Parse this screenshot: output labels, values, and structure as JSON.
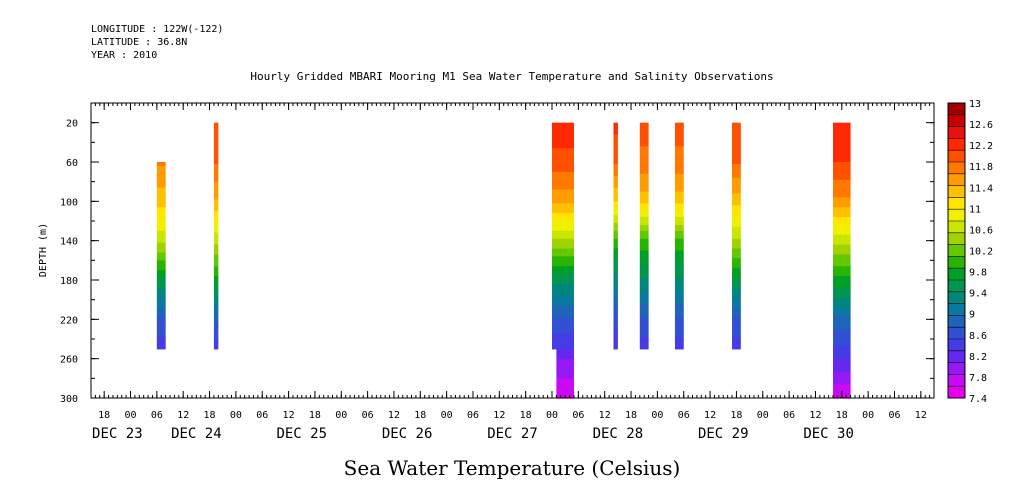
{
  "header": {
    "longitude": "LONGITUDE : 122W(-122)",
    "latitude": "LATITUDE : 36.8N",
    "year": "YEAR : 2010"
  },
  "chart_data": {
    "type": "heatmap",
    "title": "Hourly Gridded MBARI Mooring M1 Sea Water Temperature and Salinity Observations",
    "xlabel": "Sea Water Temperature (Celsius)",
    "ylabel": "DEPTH (m)",
    "x_hours_range": [
      -9,
      183
    ],
    "y_range": [
      0,
      300
    ],
    "y_reversed": true,
    "x_hour_ticks": [
      -6,
      0,
      6,
      12,
      18,
      24,
      30,
      36,
      42,
      48,
      54,
      60,
      66,
      72,
      78,
      84,
      90,
      96,
      102,
      108,
      114,
      120,
      126,
      132,
      138,
      144,
      150,
      156,
      162,
      168,
      174,
      180
    ],
    "x_hour_tick_labels": [
      "18",
      "00",
      "06",
      "12",
      "18",
      "00",
      "06",
      "12",
      "18",
      "00",
      "06",
      "12",
      "18",
      "00",
      "06",
      "12",
      "18",
      "00",
      "06",
      "12",
      "18",
      "00",
      "06",
      "12",
      "18",
      "00",
      "06",
      "12",
      "18",
      "00",
      "06",
      "12"
    ],
    "day_labels": [
      {
        "label": "DEC 23",
        "hour": -3
      },
      {
        "label": "DEC 24",
        "hour": 15
      },
      {
        "label": "DEC 25",
        "hour": 39
      },
      {
        "label": "DEC 26",
        "hour": 63
      },
      {
        "label": "DEC 27",
        "hour": 87
      },
      {
        "label": "DEC 28",
        "hour": 111
      },
      {
        "label": "DEC 29",
        "hour": 135
      },
      {
        "label": "DEC 30",
        "hour": 159
      }
    ],
    "y_ticks": [
      20,
      60,
      100,
      140,
      180,
      220,
      260,
      300
    ],
    "colorbar": {
      "labels": [
        "13",
        "12.6",
        "12.2",
        "11.8",
        "11.4",
        "11",
        "10.6",
        "10.2",
        "9.8",
        "9.4",
        "9",
        "8.6",
        "8.2",
        "7.8",
        "7.4"
      ],
      "colors": [
        "#a00000",
        "#c80000",
        "#e81010",
        "#ff2800",
        "#ff5000",
        "#ff7800",
        "#ff9c00",
        "#ffc000",
        "#ffe600",
        "#f0f000",
        "#c8e600",
        "#a0d200",
        "#64c800",
        "#28b400",
        "#00a028",
        "#009650",
        "#00877d",
        "#0a78a0",
        "#1e64b9",
        "#3250d2",
        "#463ce6",
        "#6428f0",
        "#9619f5",
        "#c80af5",
        "#e600f0"
      ]
    },
    "columns": [
      {
        "start_hour": 6,
        "end_hour": 8,
        "top_depth": 60,
        "bottom_depth": 250,
        "stops": [
          {
            "depth": 60,
            "temp": 11.7
          },
          {
            "depth": 100,
            "temp": 11.3
          },
          {
            "depth": 140,
            "temp": 10.6
          },
          {
            "depth": 180,
            "temp": 9.6
          },
          {
            "depth": 220,
            "temp": 8.7
          },
          {
            "depth": 250,
            "temp": 8.4
          }
        ]
      },
      {
        "start_hour": 19,
        "end_hour": 20,
        "top_depth": 20,
        "bottom_depth": 250,
        "stops": [
          {
            "depth": 20,
            "temp": 12.1
          },
          {
            "depth": 60,
            "temp": 11.9
          },
          {
            "depth": 100,
            "temp": 11.4
          },
          {
            "depth": 140,
            "temp": 10.6
          },
          {
            "depth": 180,
            "temp": 9.8
          },
          {
            "depth": 220,
            "temp": 8.8
          },
          {
            "depth": 250,
            "temp": 8.4
          }
        ]
      },
      {
        "start_hour": 96,
        "end_hour": 101,
        "top_depth": 20,
        "bottom_depth": 250,
        "stops": [
          {
            "depth": 20,
            "temp": 12.3
          },
          {
            "depth": 60,
            "temp": 12.0
          },
          {
            "depth": 100,
            "temp": 11.5
          },
          {
            "depth": 140,
            "temp": 10.5
          },
          {
            "depth": 180,
            "temp": 9.5
          },
          {
            "depth": 220,
            "temp": 8.7
          },
          {
            "depth": 250,
            "temp": 8.3
          }
        ]
      },
      {
        "start_hour": 97,
        "end_hour": 101,
        "top_depth": 250,
        "bottom_depth": 300,
        "stops": [
          {
            "depth": 250,
            "temp": 8.2
          },
          {
            "depth": 275,
            "temp": 7.9
          },
          {
            "depth": 300,
            "temp": 7.6
          }
        ]
      },
      {
        "start_hour": 110,
        "end_hour": 111,
        "top_depth": 20,
        "bottom_depth": 250,
        "stops": [
          {
            "depth": 20,
            "temp": 12.2
          },
          {
            "depth": 60,
            "temp": 11.9
          },
          {
            "depth": 100,
            "temp": 11.2
          },
          {
            "depth": 140,
            "temp": 10.0
          },
          {
            "depth": 180,
            "temp": 9.3
          },
          {
            "depth": 220,
            "temp": 8.6
          },
          {
            "depth": 250,
            "temp": 8.3
          }
        ]
      },
      {
        "start_hour": 116,
        "end_hour": 118,
        "top_depth": 20,
        "bottom_depth": 250,
        "stops": [
          {
            "depth": 20,
            "temp": 12.0
          },
          {
            "depth": 60,
            "temp": 11.8
          },
          {
            "depth": 100,
            "temp": 11.3
          },
          {
            "depth": 140,
            "temp": 10.0
          },
          {
            "depth": 180,
            "temp": 9.4
          },
          {
            "depth": 220,
            "temp": 8.7
          },
          {
            "depth": 250,
            "temp": 8.4
          }
        ]
      },
      {
        "start_hour": 124,
        "end_hour": 126,
        "top_depth": 20,
        "bottom_depth": 250,
        "stops": [
          {
            "depth": 20,
            "temp": 12.0
          },
          {
            "depth": 60,
            "temp": 11.8
          },
          {
            "depth": 100,
            "temp": 11.3
          },
          {
            "depth": 140,
            "temp": 10.0
          },
          {
            "depth": 180,
            "temp": 9.4
          },
          {
            "depth": 220,
            "temp": 8.7
          },
          {
            "depth": 250,
            "temp": 8.4
          }
        ]
      },
      {
        "start_hour": 137,
        "end_hour": 139,
        "top_depth": 20,
        "bottom_depth": 250,
        "stops": [
          {
            "depth": 20,
            "temp": 12.1
          },
          {
            "depth": 60,
            "temp": 11.9
          },
          {
            "depth": 100,
            "temp": 11.3
          },
          {
            "depth": 140,
            "temp": 10.5
          },
          {
            "depth": 180,
            "temp": 9.6
          },
          {
            "depth": 220,
            "temp": 8.7
          },
          {
            "depth": 250,
            "temp": 8.4
          }
        ]
      },
      {
        "start_hour": 160,
        "end_hour": 164,
        "top_depth": 20,
        "bottom_depth": 300,
        "stops": [
          {
            "depth": 20,
            "temp": 12.3
          },
          {
            "depth": 60,
            "temp": 12.1
          },
          {
            "depth": 100,
            "temp": 11.6
          },
          {
            "depth": 140,
            "temp": 10.6
          },
          {
            "depth": 180,
            "temp": 9.8
          },
          {
            "depth": 220,
            "temp": 8.9
          },
          {
            "depth": 260,
            "temp": 8.3
          },
          {
            "depth": 300,
            "temp": 7.6
          }
        ]
      }
    ]
  }
}
